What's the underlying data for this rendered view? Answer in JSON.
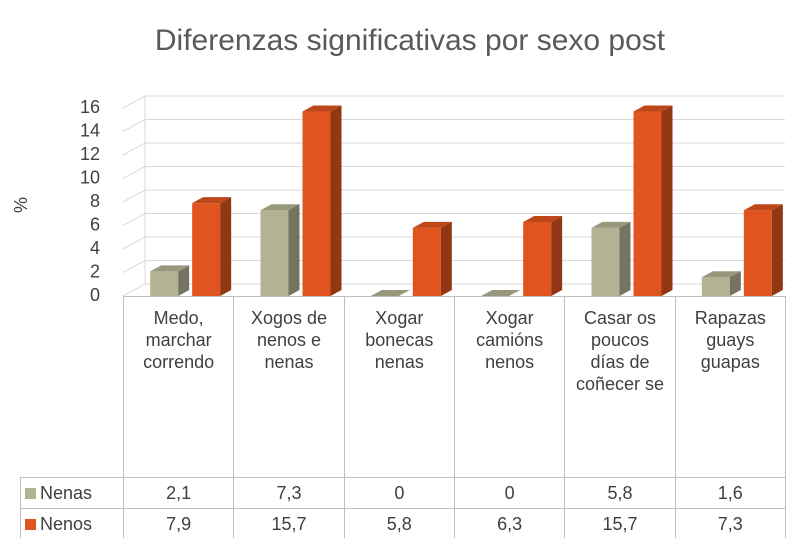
{
  "chart_data": {
    "type": "bar3d",
    "title": "Diferenzas significativas por sexo post",
    "y_label": "%",
    "categories": [
      "Medo, marchar correndo",
      "Xogos de nenos e nenas",
      "Xogar bonecas nenas",
      "Xogar camións nenos",
      "Casar os poucos días de coñecer se",
      "Rapazas guays guapas"
    ],
    "series": [
      {
        "name": "Nenas",
        "color": "#b3b393",
        "values": [
          2.1,
          7.3,
          0,
          0,
          5.8,
          1.6
        ],
        "value_labels": [
          "2,1",
          "7,3",
          "0",
          "0",
          "5,8",
          "1,6"
        ]
      },
      {
        "name": "Nenos",
        "color": "#e0541f",
        "values": [
          7.9,
          15.7,
          5.8,
          6.3,
          15.7,
          7.3
        ],
        "value_labels": [
          "7,9",
          "15,7",
          "5,8",
          "6,3",
          "15,7",
          "7,3"
        ]
      }
    ],
    "ylim": [
      0,
      16
    ],
    "yticks": [
      0,
      2,
      4,
      6,
      8,
      10,
      12,
      14,
      16
    ],
    "grid": true
  }
}
